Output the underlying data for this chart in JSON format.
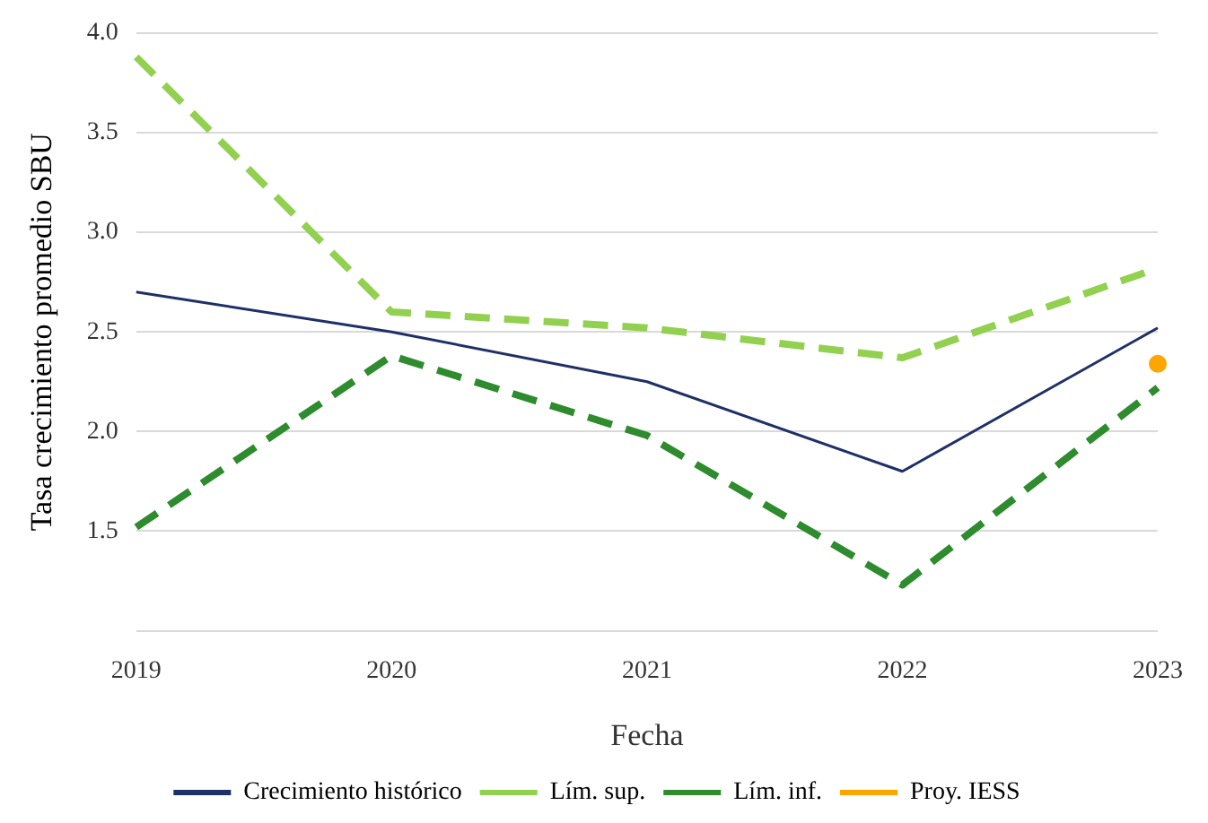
{
  "chart_data": {
    "type": "line",
    "xlabel": "Fecha",
    "ylabel": "Tasa crecimiento promedio SBU",
    "categories": [
      "2019",
      "2020",
      "2021",
      "2022",
      "2023"
    ],
    "series": [
      {
        "name": "Crecimiento histórico",
        "color": "#1f3068",
        "values": [
          2.7,
          2.5,
          2.25,
          1.8,
          2.52
        ],
        "line_style": "solid"
      },
      {
        "name": "Lím. sup.",
        "color": "#92d050",
        "values": [
          3.88,
          2.6,
          2.52,
          2.37,
          2.82
        ],
        "line_style": "dashed"
      },
      {
        "name": "Lím. inf.",
        "color": "#2e8b2e",
        "values": [
          1.52,
          2.38,
          1.98,
          1.23,
          2.22
        ],
        "line_style": "dashed"
      },
      {
        "name": "Proy. IESS",
        "type": "scatter",
        "color": "#ffa500",
        "values": [
          null,
          null,
          null,
          null,
          2.34
        ],
        "marker": "circle"
      }
    ],
    "ylim": [
      1,
      4
    ],
    "yticks": [
      {
        "value": 1,
        "label": null
      },
      1.5,
      {
        "value": 2,
        "label": "2.0"
      },
      2.5,
      {
        "value": 3,
        "label": "3.0"
      },
      3.5,
      {
        "value": 4,
        "label": "4.0"
      }
    ],
    "grid": "y",
    "legend": "bottom",
    "marker": "none"
  }
}
